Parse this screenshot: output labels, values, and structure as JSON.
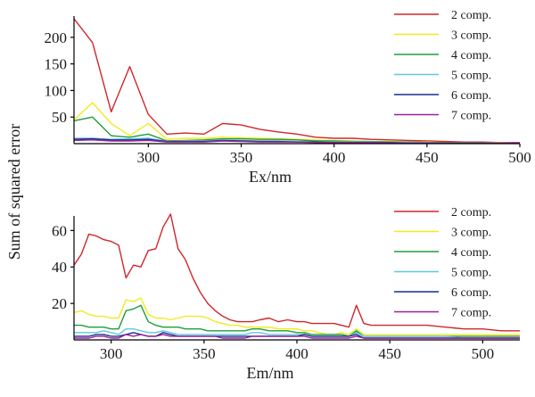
{
  "ylabel_shared": "Sum of squared error",
  "chart_data": [
    {
      "type": "line",
      "xlabel": "Ex/nm",
      "ylabel": "Sum of squared error",
      "xlim": [
        260,
        500
      ],
      "ylim": [
        0,
        240
      ],
      "xticks": [
        300,
        350,
        400,
        450,
        500
      ],
      "yticks": [
        50,
        100,
        150,
        200
      ],
      "legend_position": "top-right",
      "x": [
        260,
        270,
        280,
        290,
        300,
        310,
        320,
        330,
        340,
        350,
        360,
        370,
        380,
        390,
        400,
        410,
        420,
        430,
        440,
        450,
        460,
        470,
        480,
        490,
        500
      ],
      "series": [
        {
          "name": "2 comp.",
          "color": "#d0262b",
          "values": [
            235,
            190,
            60,
            145,
            55,
            18,
            20,
            18,
            38,
            35,
            27,
            22,
            18,
            12,
            10,
            10,
            8,
            7,
            6,
            5,
            4,
            3,
            3,
            2,
            2
          ]
        },
        {
          "name": "3 comp.",
          "color": "#f2ea1f",
          "values": [
            45,
            77,
            38,
            15,
            38,
            8,
            10,
            10,
            12,
            11,
            10,
            9,
            8,
            7,
            6,
            5,
            4,
            4,
            3,
            3,
            2,
            2,
            2,
            2,
            1
          ]
        },
        {
          "name": "4 comp.",
          "color": "#1f9e3a",
          "values": [
            43,
            50,
            15,
            12,
            18,
            5,
            6,
            7,
            9,
            9,
            8,
            8,
            7,
            5,
            5,
            4,
            4,
            3,
            3,
            2,
            2,
            2,
            2,
            1,
            1
          ]
        },
        {
          "name": "5 comp.",
          "color": "#5ec8df",
          "values": [
            10,
            10,
            8,
            9,
            10,
            4,
            5,
            5,
            7,
            6,
            5,
            5,
            4,
            3,
            3,
            3,
            3,
            2,
            2,
            2,
            1,
            1,
            1,
            1,
            1
          ]
        },
        {
          "name": "6 comp.",
          "color": "#1c2f8c",
          "values": [
            8,
            9,
            7,
            7,
            8,
            4,
            4,
            4,
            6,
            5,
            4,
            4,
            3,
            3,
            2,
            2,
            2,
            2,
            1,
            1,
            1,
            1,
            1,
            1,
            1
          ]
        },
        {
          "name": "7 comp.",
          "color": "#9c1f9c",
          "values": [
            6,
            7,
            5,
            5,
            6,
            3,
            3,
            3,
            5,
            4,
            3,
            3,
            3,
            2,
            2,
            2,
            2,
            1,
            1,
            1,
            1,
            1,
            1,
            1,
            1
          ]
        }
      ]
    },
    {
      "type": "line",
      "xlabel": "Em/nm",
      "ylabel": "Sum of squared error",
      "xlim": [
        280,
        520
      ],
      "ylim": [
        0,
        68
      ],
      "xticks": [
        300,
        350,
        400,
        450,
        500
      ],
      "yticks": [
        20,
        40,
        60
      ],
      "legend_position": "top-right",
      "x": [
        280,
        284,
        288,
        292,
        296,
        300,
        304,
        308,
        312,
        316,
        320,
        324,
        328,
        332,
        336,
        340,
        344,
        348,
        352,
        356,
        360,
        364,
        368,
        372,
        376,
        380,
        385,
        390,
        395,
        400,
        404,
        408,
        412,
        416,
        420,
        424,
        428,
        432,
        436,
        440,
        445,
        450,
        455,
        460,
        470,
        480,
        490,
        500,
        510,
        520
      ],
      "series": [
        {
          "name": "2 comp.",
          "color": "#d0262b",
          "values": [
            41,
            47,
            58,
            57,
            55,
            54,
            52,
            34,
            41,
            40,
            49,
            50,
            62,
            69,
            50,
            44,
            34,
            26,
            20,
            16,
            13,
            11,
            10,
            10,
            10,
            11,
            12,
            10,
            11,
            10,
            10,
            9,
            9,
            9,
            9,
            8,
            7,
            19,
            9,
            8,
            8,
            8,
            8,
            8,
            8,
            7,
            6,
            6,
            5,
            5
          ]
        },
        {
          "name": "3 comp.",
          "color": "#f2ea1f",
          "values": [
            15,
            16,
            14,
            13,
            13,
            12,
            12,
            22,
            21,
            23,
            14,
            12,
            12,
            11,
            12,
            13,
            13,
            13,
            12,
            10,
            9,
            8,
            8,
            7,
            7,
            7,
            7,
            6,
            6,
            6,
            5,
            5,
            4,
            3,
            3,
            4,
            3,
            6,
            3,
            3,
            3,
            3,
            3,
            3,
            3,
            3,
            3,
            3,
            3,
            3
          ]
        },
        {
          "name": "4 comp.",
          "color": "#1f9e3a",
          "values": [
            8,
            8,
            7,
            7,
            7,
            6,
            6,
            16,
            17,
            19,
            10,
            8,
            7,
            7,
            7,
            6,
            6,
            6,
            5,
            5,
            5,
            5,
            5,
            5,
            6,
            6,
            5,
            5,
            5,
            4,
            4,
            3,
            3,
            3,
            3,
            3,
            2,
            5,
            2,
            2,
            2,
            2,
            2,
            2,
            2,
            2,
            2,
            2,
            2,
            2
          ]
        },
        {
          "name": "5 comp.",
          "color": "#5ec8df",
          "values": [
            4,
            4,
            4,
            4,
            5,
            4,
            3,
            6,
            6,
            5,
            4,
            4,
            5,
            4,
            3,
            3,
            3,
            3,
            3,
            3,
            3,
            3,
            3,
            3,
            4,
            4,
            3,
            3,
            3,
            3,
            3,
            2,
            2,
            2,
            2,
            2,
            2,
            4,
            2,
            2,
            2,
            2,
            2,
            2,
            2,
            2,
            1,
            1,
            1,
            1
          ]
        },
        {
          "name": "6 comp.",
          "color": "#1c2f8c",
          "values": [
            2,
            2,
            2,
            3,
            3,
            2,
            2,
            3,
            4,
            3,
            2,
            2,
            4,
            3,
            2,
            2,
            2,
            2,
            2,
            2,
            2,
            2,
            2,
            2,
            2,
            2,
            2,
            2,
            2,
            2,
            3,
            2,
            2,
            2,
            2,
            2,
            2,
            3,
            1,
            1,
            1,
            1,
            1,
            1,
            1,
            1,
            1,
            1,
            1,
            1
          ]
        },
        {
          "name": "7 comp.",
          "color": "#9c1f9c",
          "values": [
            1,
            1,
            1,
            2,
            2,
            1,
            1,
            3,
            2,
            3,
            2,
            2,
            3,
            2,
            2,
            2,
            2,
            2,
            2,
            2,
            1,
            1,
            1,
            1,
            2,
            2,
            2,
            2,
            2,
            2,
            2,
            1,
            1,
            1,
            1,
            1,
            1,
            2,
            1,
            1,
            1,
            1,
            1,
            1,
            1,
            1,
            1,
            1,
            1,
            1
          ]
        }
      ]
    }
  ]
}
